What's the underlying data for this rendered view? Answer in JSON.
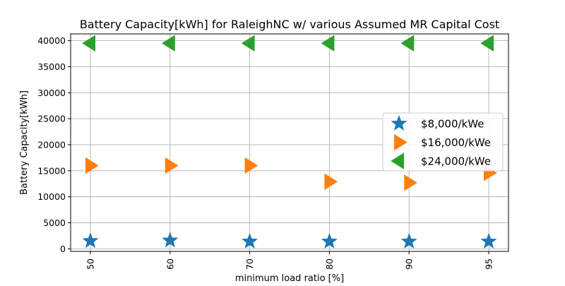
{
  "chart_data": {
    "type": "scatter",
    "title": "Battery Capacity[kWh] for RaleighNC w/ various Assumed MR Capital Cost",
    "xlabel": "minimum load ratio [%]",
    "ylabel": "Battery Capacity[kWh]",
    "categories": [
      "50",
      "60",
      "70",
      "80",
      "90",
      "95"
    ],
    "ylim": [
      -500,
      41300
    ],
    "yticks": [
      0,
      5000,
      10000,
      15000,
      20000,
      25000,
      30000,
      35000,
      40000
    ],
    "grid": true,
    "legend_position": "center-right",
    "series": [
      {
        "name": "$8,000/kWe",
        "marker": "star",
        "color": "#1f77b4",
        "values": [
          1500,
          1600,
          1400,
          1400,
          1400,
          1400
        ]
      },
      {
        "name": "$16,000/kWe",
        "marker": "triangle-right",
        "color": "#ff7f0e",
        "values": [
          16000,
          16000,
          16000,
          12900,
          12700,
          14600
        ]
      },
      {
        "name": "$24,000/kWe",
        "marker": "triangle-left",
        "color": "#2ca02c",
        "values": [
          39500,
          39500,
          39500,
          39500,
          39500,
          39500
        ]
      }
    ]
  }
}
